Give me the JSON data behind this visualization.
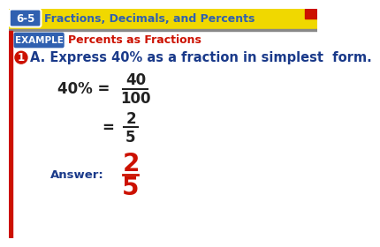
{
  "bg_color": "#ffffff",
  "header_bg": "#f0d800",
  "header_text": "Fractions, Decimals, and Percents",
  "header_label": "6-5",
  "header_label_bg": "#3060b0",
  "example_label": "EXAMPLE",
  "example_label_bg": "#3060b0",
  "example_title": "Percents as Fractions",
  "example_title_color": "#cc1100",
  "question_color": "#1a3a8a",
  "question_text": "A. Express 40% as a fraction in simplest  form.",
  "circle_color": "#cc1100",
  "circle_text": "1",
  "step1_left": "40% =",
  "step1_num": "40",
  "step1_den": "100",
  "math_color": "#222222",
  "step2_eq": "=",
  "step2_num": "2",
  "step2_den": "5",
  "answer_label": "Answer:",
  "answer_label_color": "#1a3a8a",
  "answer_num": "2",
  "answer_den": "5",
  "answer_color": "#cc1100",
  "red_color": "#cc1100",
  "left_strip_color": "#cc1100",
  "top_right_sq_color": "#cc1100"
}
